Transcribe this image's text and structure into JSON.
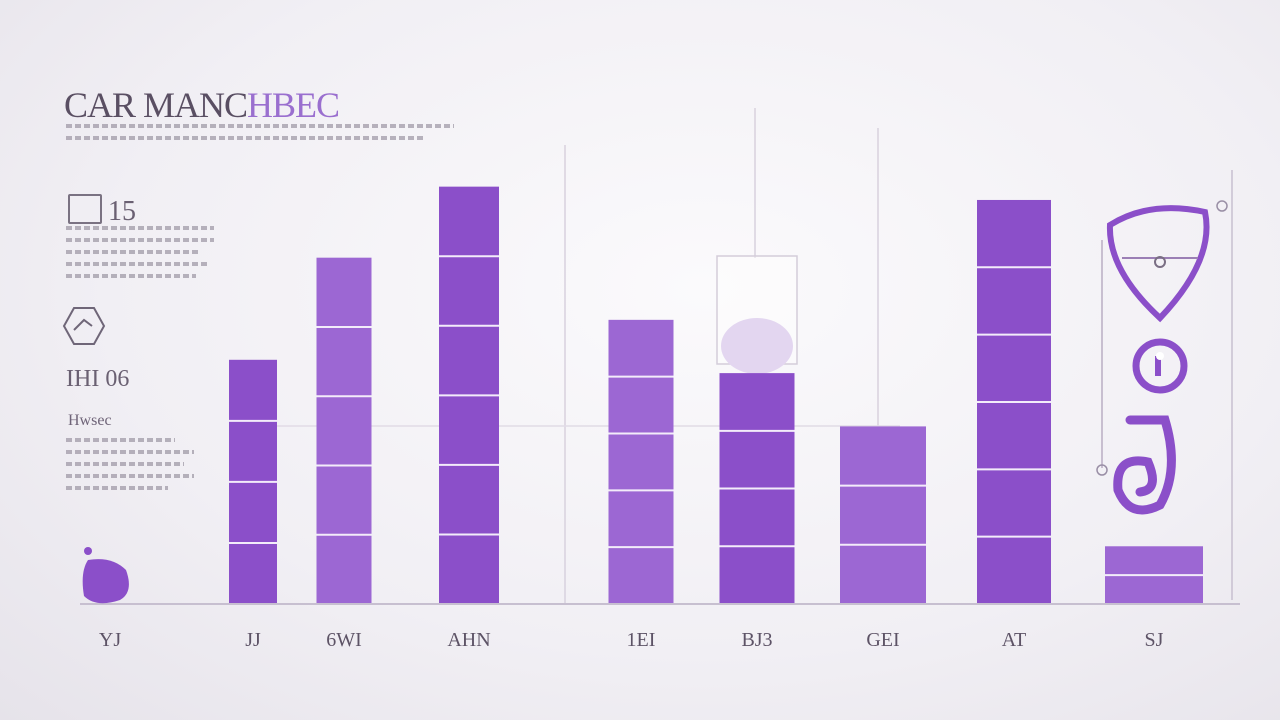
{
  "header": {
    "title_part1": "CAR MANC",
    "title_part2": "HBEC"
  },
  "stats": {
    "stat1_value": "15",
    "stat2_value": "IHI 06",
    "stat2_label": "Hwsec"
  },
  "icons": [
    "hexagon-icon",
    "shield-icon",
    "circle-badge-icon",
    "hook-icon",
    "blob-icon"
  ],
  "colors": {
    "bar": "#8b4fc9",
    "bar_light": "#9c67d3",
    "axis": "#c7bfd0",
    "text": "#5d5366"
  },
  "chart_data": {
    "type": "bar",
    "categories": [
      "YJ",
      "JJ",
      "6WI",
      "AHN",
      "1EI",
      "BJ3",
      "GEI",
      "AT",
      "SJ"
    ],
    "values": [
      0,
      55,
      78,
      94,
      64,
      52,
      40,
      91,
      13
    ],
    "ylim": [
      0,
      100
    ],
    "grid": false,
    "legend": "none"
  }
}
